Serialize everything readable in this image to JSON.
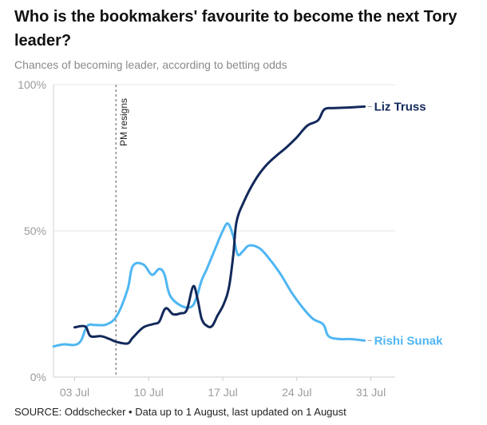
{
  "header": {
    "title": "Who is the bookmakers' favourite to become the next Tory leader?",
    "subtitle": "Chances of becoming leader, according to betting odds"
  },
  "footer": {
    "source": "SOURCE: Oddschecker • Data up to 1 August, last updated on 1 August"
  },
  "chart_data": {
    "type": "line",
    "title": "Who is the bookmakers' favourite to become the next Tory leader?",
    "subtitle": "Chances of becoming leader, according to betting odds",
    "xlabel": "",
    "ylabel": "",
    "xlim": [
      0,
      32.3
    ],
    "ylim": [
      0,
      100
    ],
    "x_ticks": [
      {
        "value": 2,
        "label": "03 Jul"
      },
      {
        "value": 9,
        "label": "10 Jul"
      },
      {
        "value": 16,
        "label": "17 Jul"
      },
      {
        "value": 23,
        "label": "24 Jul"
      },
      {
        "value": 30,
        "label": "31 Jul"
      }
    ],
    "y_ticks": [
      {
        "value": 0,
        "label": "0%"
      },
      {
        "value": 50,
        "label": "50%"
      },
      {
        "value": 100,
        "label": "100%"
      }
    ],
    "grid": "horizontal",
    "annotations": [
      {
        "type": "vline",
        "x": 5.9,
        "label": "PM resigns",
        "style": "dashed"
      }
    ],
    "series": [
      {
        "name": "Liz Truss",
        "color": "#13295b",
        "points": [
          [
            2,
            17
          ],
          [
            3,
            17.3
          ],
          [
            3.5,
            14
          ],
          [
            4.5,
            14
          ],
          [
            5.3,
            13
          ],
          [
            6,
            12
          ],
          [
            7,
            11.5
          ],
          [
            7.5,
            13.5
          ],
          [
            8.5,
            17
          ],
          [
            9.5,
            18.2
          ],
          [
            10,
            19
          ],
          [
            10.6,
            23.5
          ],
          [
            11.3,
            21.5
          ],
          [
            12,
            21.8
          ],
          [
            12.6,
            23
          ],
          [
            13.2,
            31
          ],
          [
            13.6,
            27
          ],
          [
            14,
            20
          ],
          [
            14.5,
            17.5
          ],
          [
            15,
            17.5
          ],
          [
            15.5,
            21
          ],
          [
            16.1,
            25
          ],
          [
            16.6,
            31
          ],
          [
            17,
            42
          ],
          [
            17.3,
            53
          ],
          [
            18,
            60
          ],
          [
            19,
            67
          ],
          [
            20,
            72
          ],
          [
            21,
            75.5
          ],
          [
            22,
            78.5
          ],
          [
            23,
            82
          ],
          [
            24,
            86
          ],
          [
            25,
            87.8
          ],
          [
            25.6,
            91.5
          ],
          [
            26.5,
            92
          ],
          [
            28,
            92.2
          ],
          [
            29.4,
            92.5
          ]
        ]
      },
      {
        "name": "Rishi Sunak",
        "color": "#4fb6f2",
        "points": [
          [
            0,
            10.5
          ],
          [
            1,
            11.2
          ],
          [
            2,
            11
          ],
          [
            2.6,
            12.5
          ],
          [
            3.2,
            17.5
          ],
          [
            4,
            17.8
          ],
          [
            5,
            18
          ],
          [
            6,
            21
          ],
          [
            7,
            30
          ],
          [
            7.5,
            38
          ],
          [
            8.5,
            38.5
          ],
          [
            9.3,
            35
          ],
          [
            10,
            37
          ],
          [
            10.5,
            35
          ],
          [
            11,
            28
          ],
          [
            12,
            24.5
          ],
          [
            13,
            24
          ],
          [
            13.5,
            27
          ],
          [
            14,
            33
          ],
          [
            14.5,
            37
          ],
          [
            15.3,
            44
          ],
          [
            16,
            50
          ],
          [
            16.5,
            52.5
          ],
          [
            17,
            48
          ],
          [
            17.4,
            42
          ],
          [
            17.9,
            43
          ],
          [
            18.5,
            45
          ],
          [
            19.5,
            44
          ],
          [
            20.5,
            40
          ],
          [
            21.5,
            35
          ],
          [
            22.5,
            29
          ],
          [
            23.5,
            24
          ],
          [
            24.5,
            20
          ],
          [
            25.5,
            18
          ],
          [
            26,
            14
          ],
          [
            27,
            13
          ],
          [
            28,
            13
          ],
          [
            29.4,
            12.5
          ]
        ]
      }
    ]
  }
}
